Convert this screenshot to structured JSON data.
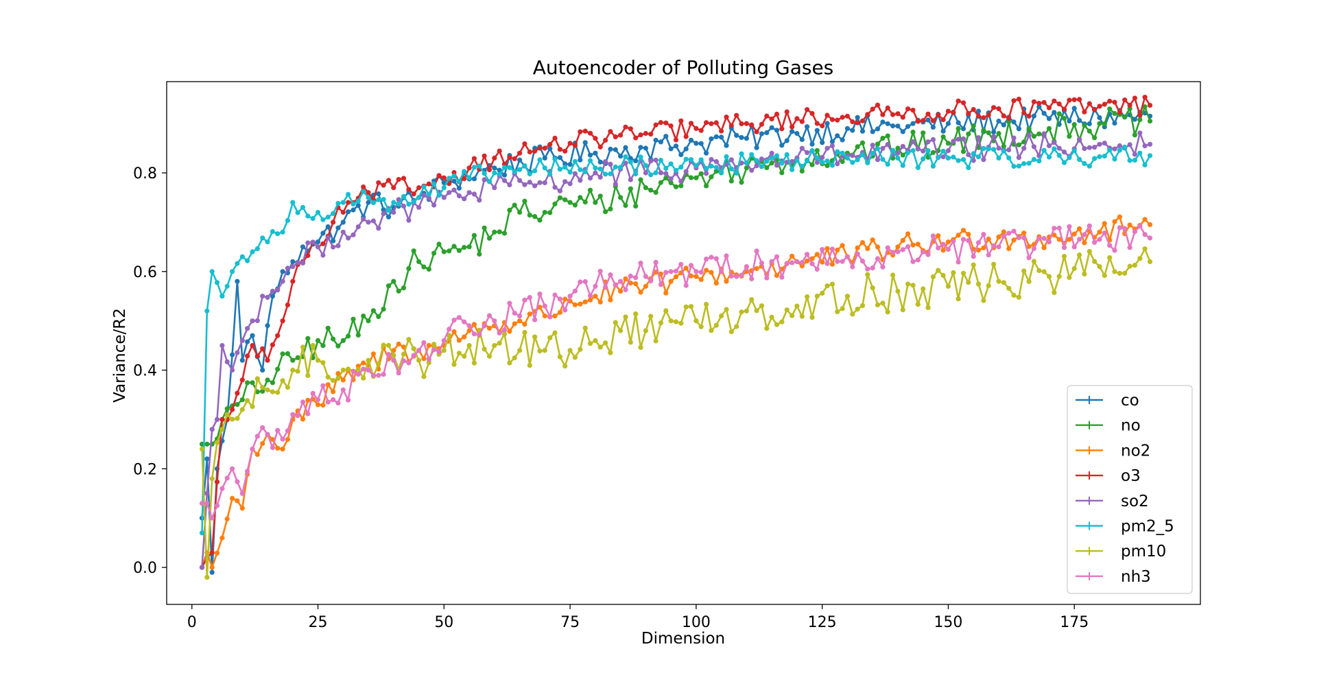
{
  "chart_data": {
    "type": "line",
    "title": "Autoencoder of Polluting Gases",
    "xlabel": "Dimension",
    "ylabel": "Variance/R2",
    "xlim": [
      -5,
      200
    ],
    "ylim": [
      -0.075,
      0.985
    ],
    "xticks": [
      0,
      25,
      50,
      75,
      100,
      125,
      150,
      175
    ],
    "yticks": [
      0.0,
      0.2,
      0.4,
      0.6,
      0.8
    ],
    "grid": false,
    "legend_position": "lower-right",
    "x_range": [
      2,
      190
    ],
    "series": [
      {
        "name": "co",
        "color": "#1f77b4",
        "anchors": [
          [
            2,
            0.1
          ],
          [
            3,
            0.22
          ],
          [
            4,
            -0.01
          ],
          [
            5,
            0.2
          ],
          [
            7,
            0.3
          ],
          [
            9,
            0.58
          ],
          [
            10,
            0.42
          ],
          [
            12,
            0.47
          ],
          [
            14,
            0.4
          ],
          [
            16,
            0.55
          ],
          [
            18,
            0.6
          ],
          [
            20,
            0.62
          ],
          [
            22,
            0.65
          ],
          [
            25,
            0.66
          ],
          [
            30,
            0.7
          ],
          [
            35,
            0.74
          ],
          [
            40,
            0.73
          ],
          [
            45,
            0.75
          ],
          [
            50,
            0.78
          ],
          [
            60,
            0.81
          ],
          [
            70,
            0.83
          ],
          [
            80,
            0.84
          ],
          [
            90,
            0.85
          ],
          [
            100,
            0.86
          ],
          [
            110,
            0.87
          ],
          [
            120,
            0.88
          ],
          [
            130,
            0.89
          ],
          [
            140,
            0.895
          ],
          [
            150,
            0.9
          ],
          [
            160,
            0.905
          ],
          [
            170,
            0.91
          ],
          [
            180,
            0.912
          ],
          [
            190,
            0.915
          ]
        ],
        "noise": 0.025
      },
      {
        "name": "no",
        "color": "#2ca02c",
        "anchors": [
          [
            2,
            0.25
          ],
          [
            3,
            0.25
          ],
          [
            4,
            0.25
          ],
          [
            6,
            0.3
          ],
          [
            10,
            0.34
          ],
          [
            15,
            0.38
          ],
          [
            20,
            0.42
          ],
          [
            25,
            0.46
          ],
          [
            30,
            0.46
          ],
          [
            35,
            0.5
          ],
          [
            40,
            0.58
          ],
          [
            45,
            0.62
          ],
          [
            50,
            0.64
          ],
          [
            55,
            0.65
          ],
          [
            60,
            0.68
          ],
          [
            65,
            0.72
          ],
          [
            70,
            0.72
          ],
          [
            75,
            0.74
          ],
          [
            80,
            0.74
          ],
          [
            85,
            0.75
          ],
          [
            90,
            0.77
          ],
          [
            95,
            0.78
          ],
          [
            100,
            0.79
          ],
          [
            105,
            0.8
          ],
          [
            110,
            0.81
          ],
          [
            115,
            0.82
          ],
          [
            120,
            0.83
          ],
          [
            130,
            0.84
          ],
          [
            140,
            0.85
          ],
          [
            150,
            0.86
          ],
          [
            160,
            0.88
          ],
          [
            170,
            0.89
          ],
          [
            180,
            0.9
          ],
          [
            190,
            0.905
          ]
        ],
        "noise": 0.03
      },
      {
        "name": "no2",
        "color": "#ff7f0e",
        "anchors": [
          [
            2,
            0.0
          ],
          [
            3,
            0.03
          ],
          [
            4,
            0.0
          ],
          [
            6,
            0.06
          ],
          [
            8,
            0.14
          ],
          [
            10,
            0.12
          ],
          [
            12,
            0.24
          ],
          [
            15,
            0.27
          ],
          [
            18,
            0.24
          ],
          [
            20,
            0.3
          ],
          [
            25,
            0.33
          ],
          [
            30,
            0.38
          ],
          [
            35,
            0.41
          ],
          [
            40,
            0.44
          ],
          [
            45,
            0.44
          ],
          [
            50,
            0.45
          ],
          [
            55,
            0.48
          ],
          [
            60,
            0.49
          ],
          [
            65,
            0.5
          ],
          [
            70,
            0.51
          ],
          [
            75,
            0.54
          ],
          [
            80,
            0.55
          ],
          [
            85,
            0.56
          ],
          [
            90,
            0.57
          ],
          [
            95,
            0.58
          ],
          [
            100,
            0.59
          ],
          [
            110,
            0.6
          ],
          [
            120,
            0.62
          ],
          [
            130,
            0.63
          ],
          [
            140,
            0.65
          ],
          [
            150,
            0.66
          ],
          [
            160,
            0.67
          ],
          [
            170,
            0.67
          ],
          [
            180,
            0.68
          ],
          [
            190,
            0.695
          ]
        ],
        "noise": 0.025
      },
      {
        "name": "o3",
        "color": "#d62728",
        "anchors": [
          [
            2,
            0.0
          ],
          [
            3,
            0.02
          ],
          [
            4,
            0.03
          ],
          [
            6,
            0.3
          ],
          [
            8,
            0.32
          ],
          [
            10,
            0.38
          ],
          [
            12,
            0.45
          ],
          [
            15,
            0.42
          ],
          [
            18,
            0.5
          ],
          [
            20,
            0.58
          ],
          [
            22,
            0.62
          ],
          [
            25,
            0.65
          ],
          [
            28,
            0.7
          ],
          [
            30,
            0.72
          ],
          [
            35,
            0.76
          ],
          [
            40,
            0.77
          ],
          [
            45,
            0.77
          ],
          [
            50,
            0.79
          ],
          [
            55,
            0.81
          ],
          [
            60,
            0.83
          ],
          [
            65,
            0.84
          ],
          [
            70,
            0.85
          ],
          [
            75,
            0.86
          ],
          [
            80,
            0.87
          ],
          [
            90,
            0.88
          ],
          [
            100,
            0.89
          ],
          [
            110,
            0.9
          ],
          [
            120,
            0.91
          ],
          [
            130,
            0.915
          ],
          [
            140,
            0.92
          ],
          [
            150,
            0.925
          ],
          [
            160,
            0.93
          ],
          [
            170,
            0.932
          ],
          [
            180,
            0.935
          ],
          [
            190,
            0.937
          ]
        ],
        "noise": 0.02
      },
      {
        "name": "so2",
        "color": "#9467bd",
        "anchors": [
          [
            2,
            0.0
          ],
          [
            3,
            0.15
          ],
          [
            4,
            0.28
          ],
          [
            5,
            0.3
          ],
          [
            6,
            0.45
          ],
          [
            8,
            0.4
          ],
          [
            10,
            0.46
          ],
          [
            12,
            0.5
          ],
          [
            14,
            0.55
          ],
          [
            16,
            0.56
          ],
          [
            18,
            0.58
          ],
          [
            20,
            0.61
          ],
          [
            25,
            0.65
          ],
          [
            30,
            0.68
          ],
          [
            35,
            0.7
          ],
          [
            40,
            0.72
          ],
          [
            45,
            0.73
          ],
          [
            50,
            0.75
          ],
          [
            55,
            0.76
          ],
          [
            60,
            0.77
          ],
          [
            70,
            0.78
          ],
          [
            80,
            0.8
          ],
          [
            90,
            0.8
          ],
          [
            100,
            0.81
          ],
          [
            110,
            0.82
          ],
          [
            120,
            0.83
          ],
          [
            130,
            0.835
          ],
          [
            140,
            0.84
          ],
          [
            150,
            0.845
          ],
          [
            160,
            0.85
          ],
          [
            170,
            0.855
          ],
          [
            180,
            0.858
          ],
          [
            190,
            0.858
          ]
        ],
        "noise": 0.025
      },
      {
        "name": "pm2_5",
        "color": "#17becf",
        "anchors": [
          [
            2,
            0.07
          ],
          [
            3,
            0.52
          ],
          [
            4,
            0.6
          ],
          [
            6,
            0.55
          ],
          [
            8,
            0.6
          ],
          [
            10,
            0.63
          ],
          [
            12,
            0.64
          ],
          [
            15,
            0.66
          ],
          [
            18,
            0.68
          ],
          [
            20,
            0.74
          ],
          [
            22,
            0.73
          ],
          [
            25,
            0.72
          ],
          [
            30,
            0.74
          ],
          [
            35,
            0.75
          ],
          [
            40,
            0.74
          ],
          [
            45,
            0.75
          ],
          [
            50,
            0.77
          ],
          [
            55,
            0.79
          ],
          [
            60,
            0.8
          ],
          [
            70,
            0.81
          ],
          [
            80,
            0.81
          ],
          [
            90,
            0.815
          ],
          [
            100,
            0.815
          ],
          [
            110,
            0.82
          ],
          [
            120,
            0.825
          ],
          [
            130,
            0.83
          ],
          [
            140,
            0.83
          ],
          [
            150,
            0.83
          ],
          [
            160,
            0.83
          ],
          [
            170,
            0.832
          ],
          [
            180,
            0.833
          ],
          [
            190,
            0.835
          ]
        ],
        "noise": 0.02
      },
      {
        "name": "pm10",
        "color": "#bcbd22",
        "anchors": [
          [
            2,
            0.24
          ],
          [
            3,
            -0.02
          ],
          [
            4,
            0.18
          ],
          [
            6,
            0.28
          ],
          [
            10,
            0.32
          ],
          [
            15,
            0.36
          ],
          [
            20,
            0.4
          ],
          [
            25,
            0.42
          ],
          [
            30,
            0.4
          ],
          [
            35,
            0.42
          ],
          [
            40,
            0.43
          ],
          [
            45,
            0.42
          ],
          [
            50,
            0.44
          ],
          [
            55,
            0.45
          ],
          [
            60,
            0.45
          ],
          [
            65,
            0.44
          ],
          [
            70,
            0.44
          ],
          [
            75,
            0.44
          ],
          [
            80,
            0.46
          ],
          [
            85,
            0.48
          ],
          [
            90,
            0.48
          ],
          [
            95,
            0.5
          ],
          [
            100,
            0.5
          ],
          [
            105,
            0.51
          ],
          [
            110,
            0.52
          ],
          [
            120,
            0.53
          ],
          [
            130,
            0.55
          ],
          [
            140,
            0.56
          ],
          [
            150,
            0.57
          ],
          [
            160,
            0.58
          ],
          [
            170,
            0.59
          ],
          [
            180,
            0.61
          ],
          [
            190,
            0.62
          ]
        ],
        "noise": 0.04
      },
      {
        "name": "nh3",
        "color": "#e377c2",
        "anchors": [
          [
            2,
            0.13
          ],
          [
            3,
            0.13
          ],
          [
            4,
            0.1
          ],
          [
            6,
            0.16
          ],
          [
            8,
            0.2
          ],
          [
            10,
            0.15
          ],
          [
            12,
            0.24
          ],
          [
            15,
            0.27
          ],
          [
            18,
            0.26
          ],
          [
            20,
            0.31
          ],
          [
            25,
            0.34
          ],
          [
            30,
            0.36
          ],
          [
            35,
            0.4
          ],
          [
            40,
            0.42
          ],
          [
            45,
            0.44
          ],
          [
            50,
            0.46
          ],
          [
            55,
            0.49
          ],
          [
            60,
            0.5
          ],
          [
            65,
            0.51
          ],
          [
            70,
            0.53
          ],
          [
            75,
            0.55
          ],
          [
            80,
            0.57
          ],
          [
            85,
            0.58
          ],
          [
            90,
            0.59
          ],
          [
            95,
            0.6
          ],
          [
            100,
            0.6
          ],
          [
            110,
            0.61
          ],
          [
            120,
            0.62
          ],
          [
            130,
            0.63
          ],
          [
            140,
            0.64
          ],
          [
            150,
            0.645
          ],
          [
            160,
            0.65
          ],
          [
            170,
            0.66
          ],
          [
            180,
            0.665
          ],
          [
            190,
            0.668
          ]
        ],
        "noise": 0.03
      }
    ]
  }
}
